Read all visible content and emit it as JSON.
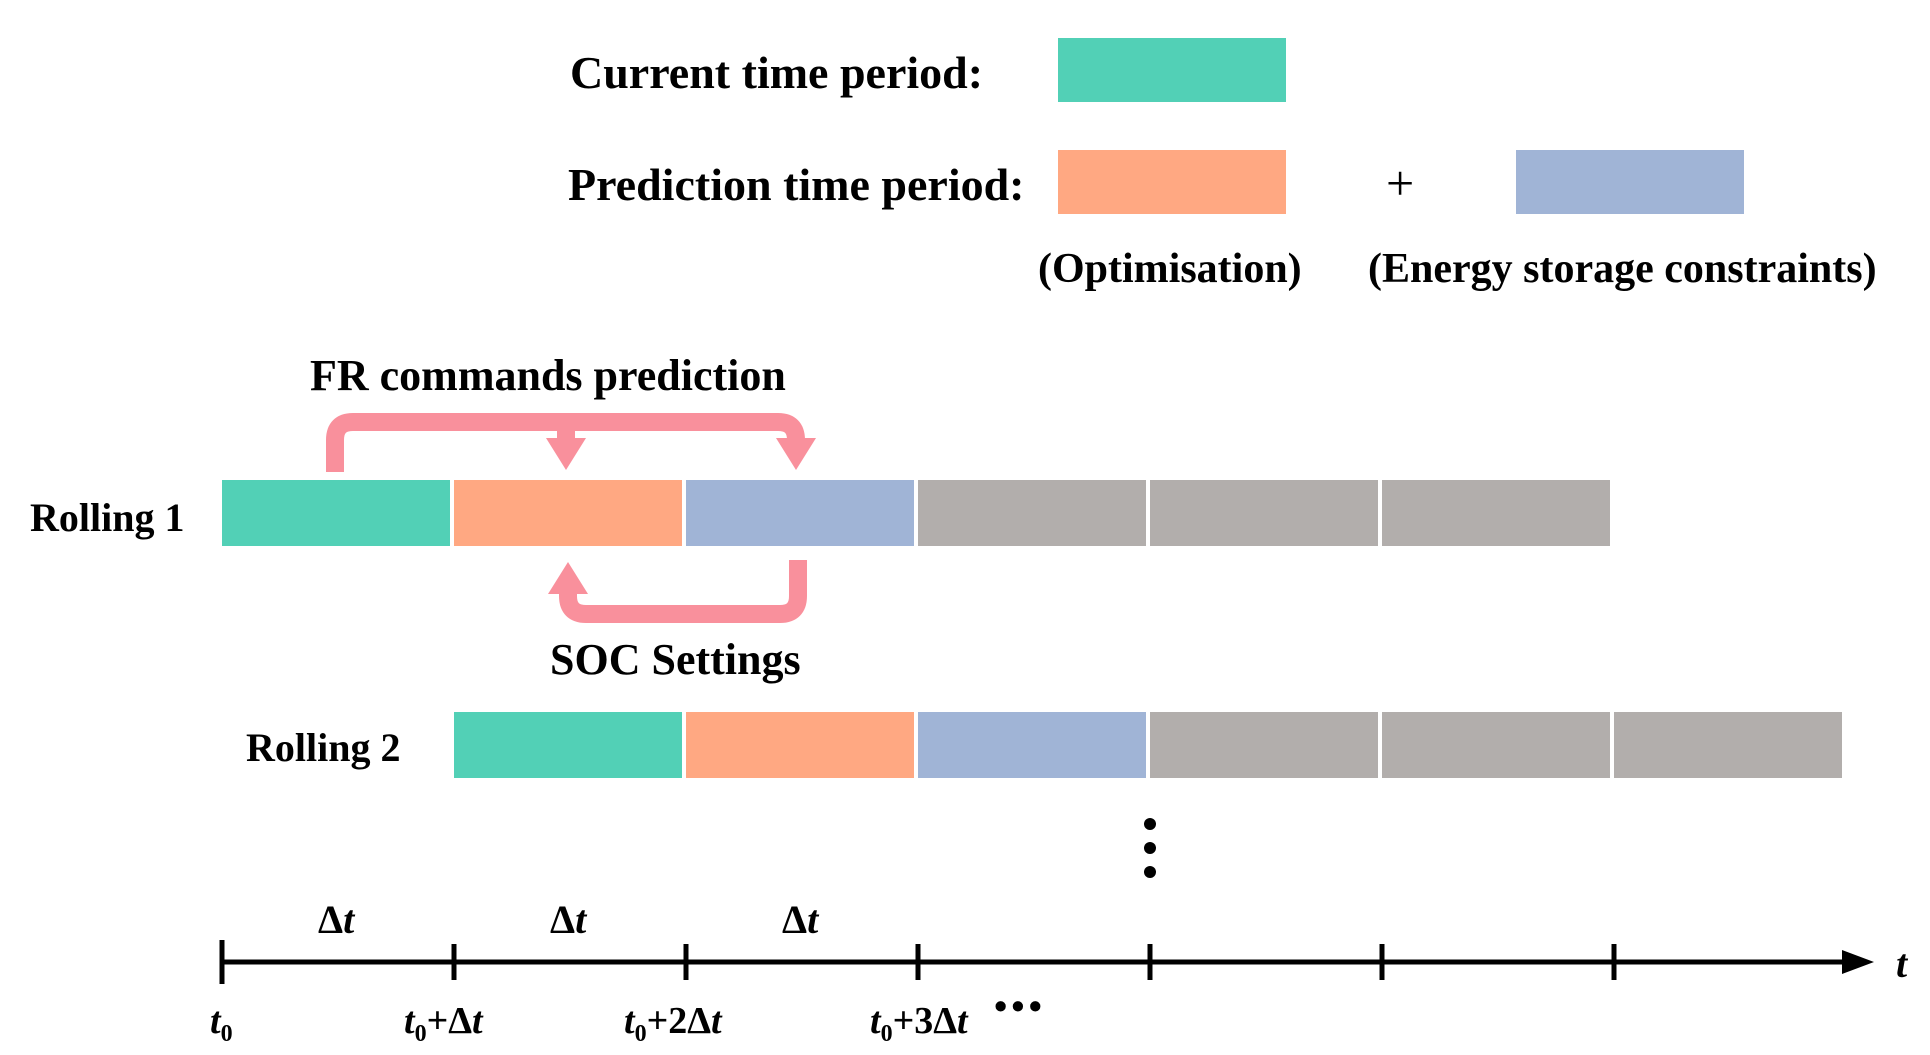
{
  "legend": {
    "current_label": "Current time period:",
    "prediction_label": "Prediction time period:",
    "plus_sign": "+",
    "optimisation_note": "(Optimisation)",
    "storage_note": "(Energy storage constraints)"
  },
  "annotations": {
    "fr_commands": "FR commands prediction",
    "soc_settings": "SOC Settings"
  },
  "rollings": [
    {
      "label": "Rolling 1"
    },
    {
      "label": "Rolling 2"
    }
  ],
  "axis": {
    "symbol": "t",
    "delta_symbol": "Δ",
    "delta_var": "t",
    "ticks": [
      {
        "base": "t",
        "sub": "0",
        "suffix": ""
      },
      {
        "base": "t",
        "sub": "0",
        "suffix": "+Δ"
      },
      {
        "base": "t",
        "sub": "0",
        "suffix": "+2Δ"
      },
      {
        "base": "t",
        "sub": "0",
        "suffix": "+3Δ"
      }
    ],
    "tick_var": "t",
    "continuation": "•••"
  },
  "colors": {
    "current": "#52d0b6",
    "optimisation": "#ffa882",
    "storage": "#a0b4d6",
    "future": "#b2aeac",
    "arrow": "#f9909c",
    "axis": "#000000"
  }
}
